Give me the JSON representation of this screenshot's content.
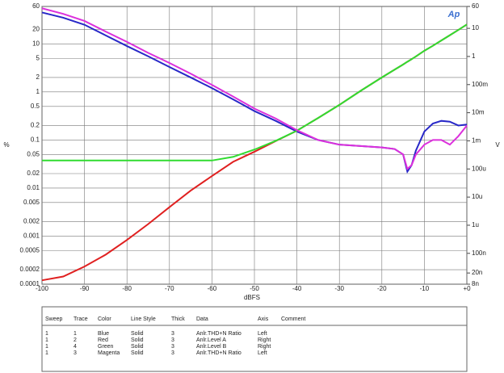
{
  "chart_data": {
    "type": "line",
    "logo": "Ap",
    "xlabel": "dBFS",
    "ylabel": "%",
    "y2label": "V",
    "xlim": [
      -100,
      0
    ],
    "xticks": [
      -100,
      -90,
      -80,
      -70,
      -60,
      -50,
      -40,
      -30,
      -20,
      -10,
      {
        "value": 0,
        "label": "+0"
      }
    ],
    "ylim": [
      0.0001,
      60
    ],
    "ylog": true,
    "yticks": [
      60,
      20,
      10,
      5,
      2,
      1,
      0.5,
      0.2,
      0.1,
      0.05,
      0.02,
      0.01,
      0.005,
      0.002,
      0.001,
      0.0005,
      0.0002,
      0.0001
    ],
    "y2lim": [
      8e-09,
      60
    ],
    "y2log": true,
    "y2ticks": [
      60,
      10,
      1,
      {
        "value": 0.1,
        "label": "100m"
      },
      {
        "value": 0.01,
        "label": "10m"
      },
      {
        "value": 0.001,
        "label": "1m"
      },
      {
        "value": 0.0001,
        "label": "100u"
      },
      {
        "value": 1e-05,
        "label": "10u"
      },
      {
        "value": 1e-06,
        "label": "1u"
      },
      {
        "value": 1e-07,
        "label": "100n"
      },
      {
        "value": 2e-08,
        "label": "20n"
      },
      {
        "value": 8e-09,
        "label": "8n"
      }
    ],
    "grid": true,
    "x": [
      -100,
      -95,
      -90,
      -85,
      -80,
      -75,
      -70,
      -65,
      -60,
      -55,
      -50,
      -45,
      -40,
      -35,
      -30,
      -25,
      -20,
      -17,
      -15,
      -14,
      -13,
      -12,
      -10,
      -8,
      -6,
      -4,
      -2,
      0
    ],
    "series": [
      {
        "name": "Blue",
        "color": "#2828c8",
        "axis": "y",
        "values": [
          45,
          35,
          25,
          15,
          9,
          5.5,
          3.3,
          2,
          1.2,
          0.7,
          0.4,
          0.25,
          0.15,
          0.1,
          0.08,
          0.075,
          0.07,
          0.065,
          0.05,
          0.022,
          0.03,
          0.06,
          0.15,
          0.22,
          0.25,
          0.24,
          0.2,
          0.21
        ]
      },
      {
        "name": "Red",
        "color": "#e02020",
        "axis": "y2",
        "values": [
          1.1e-08,
          1.5e-08,
          3.4e-08,
          9e-08,
          3e-07,
          1.1e-06,
          4.4e-06,
          1.7e-05,
          5.6e-05,
          0.00018,
          0.00041,
          0.00098,
          0.0023,
          0.0065,
          0.019,
          0.06,
          0.18,
          0.34,
          0.52,
          0.65,
          0.8,
          1.0,
          1.6,
          2.4,
          3.7,
          5.7,
          8.8,
          13.7
        ]
      },
      {
        "name": "Green",
        "color": "#30dc30",
        "axis": "y2",
        "values": [
          0.0002,
          0.0002,
          0.0002,
          0.0002,
          0.0002,
          0.0002,
          0.0002,
          0.0002,
          0.0002,
          0.00027,
          0.00049,
          0.001,
          0.0023,
          0.0065,
          0.019,
          0.06,
          0.18,
          0.34,
          0.52,
          0.65,
          0.8,
          1.0,
          1.6,
          2.4,
          3.7,
          5.7,
          8.8,
          13.7
        ]
      },
      {
        "name": "Magenta",
        "color": "#dc30dc",
        "axis": "y",
        "values": [
          55,
          42,
          30,
          18,
          11,
          6.5,
          4,
          2.4,
          1.4,
          0.8,
          0.45,
          0.28,
          0.16,
          0.1,
          0.08,
          0.075,
          0.07,
          0.065,
          0.05,
          0.025,
          0.03,
          0.05,
          0.08,
          0.1,
          0.1,
          0.08,
          0.12,
          0.2
        ]
      }
    ]
  },
  "table": {
    "headers": [
      "Sweep",
      "Trace",
      "Color",
      "Line Style",
      "Thick",
      "Data",
      "Axis",
      "Comment"
    ],
    "rows": [
      [
        "1",
        "1",
        "Blue",
        "Solid",
        "3",
        "Anlr.THD+N Ratio",
        "Left"
      ],
      [
        "1",
        "2",
        "Red",
        "Solid",
        "3",
        "Anlr.Level A",
        "Right"
      ],
      [
        "1",
        "4",
        "Green",
        "Solid",
        "3",
        "Anlr.Level B",
        "Right"
      ],
      [
        "1",
        "3",
        "Magenta",
        "Solid",
        "3",
        "Anlr.THD+N Ratio",
        "Left"
      ]
    ]
  }
}
